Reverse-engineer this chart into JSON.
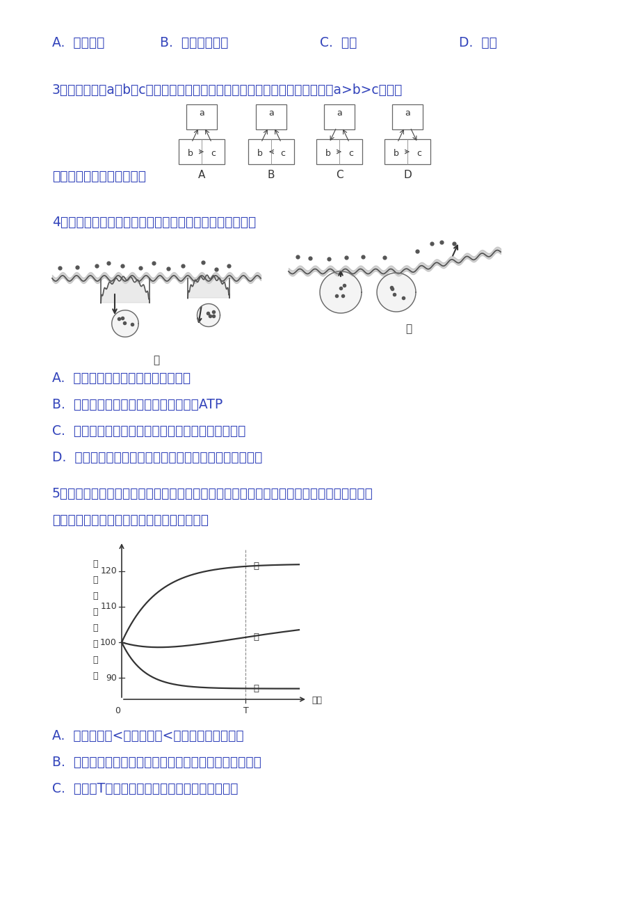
{
  "bg_color": "#ffffff",
  "text_color": "#3344bb",
  "gray_color": "#444444",
  "q2_options_a": "A.  质壁分离",
  "q2_options_b": "B.  质壁分离复原",
  "q2_options_c": "C.  吸水",
  "q2_options_d": "D.  皱缩",
  "q3_text": "3、如图所示，a、b、c表示某植物体的三个相邻的细胞，它们的细胞液浓度为a>b>c，则它",
  "q3_text2": "们之间的水分渗透方向应是",
  "q4_text": "4、下图表示物质进出细胞的不同过程，相关叙述错误的是",
  "q4_a": "A.  甲可以表示胞吞，乙可以表示胞吐",
  "q4_b": "B.  甲、乙两种物资运输过程都需要消耗ATP",
  "q4_c": "C.  这两种物质运输过程都是从低浓度向高浓度输送的",
  "q4_d": "D.  甲和乙两种物质运输过程说明生物膜具有一定的流动性",
  "q5_text": "5、将同一植物的成熟细胞依次浸在甲、乙、丙三种溶液中，测得细胞体积随着时间的变化如",
  "q5_text2": "图曲线所示，下列有关推导和叙述不正确的是",
  "q5_a": "A.  甲溶液浓度<细胞液浓度<乙、丙两溶液的浓度",
  "q5_b": "B.  因丙溶液浓度过高，导致植物细胞发生渗透失水而死亡",
  "q5_c": "C.  在时间T内，乙溶液中的植物细胞保持生命活力",
  "diagram_labels": [
    "A",
    "B",
    "C",
    "D"
  ],
  "yticks": [
    90,
    100,
    110,
    120
  ],
  "font_name": "SimHei"
}
